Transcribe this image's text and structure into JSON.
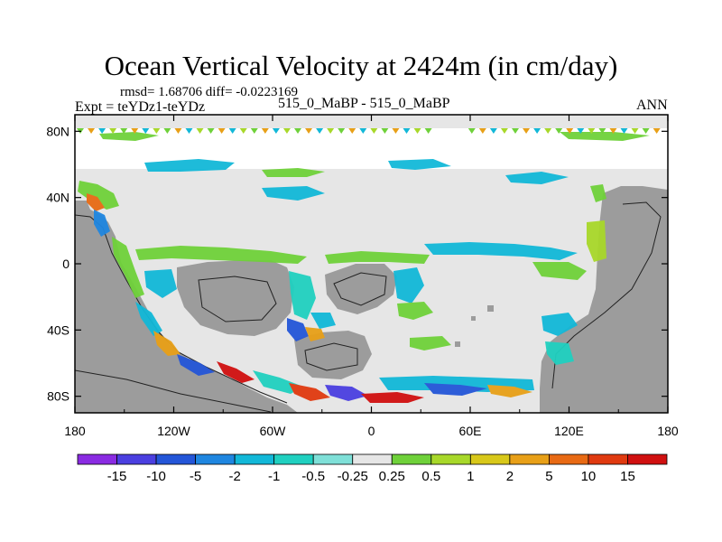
{
  "chart_data": {
    "type": "heatmap",
    "title": "Ocean Vertical Velocity at 2424m (in cm/day)",
    "stats": "rmsd= 1.68706  diff= -0.0223169",
    "experiment": "Expt = teYDz1-teYDz",
    "subtitle": "515_0_MaBP - 515_0_MaBP",
    "season": "ANN",
    "x_ticks": [
      "180",
      "120W",
      "60W",
      "0",
      "60E",
      "120E",
      "180"
    ],
    "x_tick_values": [
      -180,
      -120,
      -60,
      0,
      60,
      120,
      180
    ],
    "y_ticks": [
      "80N",
      "40N",
      "0",
      "40S",
      "80S"
    ],
    "y_tick_values": [
      80,
      40,
      0,
      -40,
      -80
    ],
    "xlim": [
      -180,
      180
    ],
    "ylim": [
      -90,
      90
    ],
    "colorbar": {
      "labels": [
        "-15",
        "-10",
        "-5",
        "-2",
        "-1",
        "-0.5",
        "-0.25",
        "0.25",
        "0.5",
        "1",
        "2",
        "5",
        "10",
        "15"
      ],
      "colors": [
        "#8a2be2",
        "#4b3fe0",
        "#2456d8",
        "#1f86e0",
        "#12b8d8",
        "#20d0c0",
        "#7fe0d8",
        "#e6e6e6",
        "#6fd13a",
        "#a8d82a",
        "#d8c81a",
        "#e8a018",
        "#e86a14",
        "#e03a10",
        "#d01010"
      ]
    },
    "land_color": "#9c9c9c",
    "neutral_color": "#e6e6e6"
  }
}
